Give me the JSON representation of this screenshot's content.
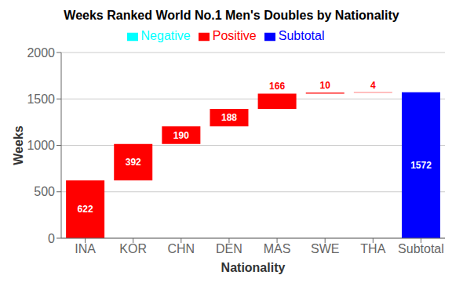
{
  "chart_data": {
    "type": "waterfall",
    "title": "Weeks Ranked World No.1 Men's Doubles by Nationality",
    "xlabel": "Nationality",
    "ylabel": "Weeks",
    "categories": [
      "INA",
      "KOR",
      "CHN",
      "DEN",
      "MAS",
      "SWE",
      "THA",
      "Subtotal"
    ],
    "series": [
      {
        "name": "Positive",
        "type": "increase",
        "color": "#FF0000",
        "values": [
          622,
          392,
          190,
          188,
          166,
          10,
          4,
          null
        ]
      },
      {
        "name": "Negative",
        "type": "decrease",
        "color": "#00FFFF",
        "values": [
          null,
          null,
          null,
          null,
          null,
          null,
          null,
          null
        ]
      },
      {
        "name": "Subtotal",
        "type": "total",
        "color": "#0000FF",
        "values": [
          null,
          null,
          null,
          null,
          null,
          null,
          null,
          1572
        ]
      }
    ],
    "ylim": [
      0,
      2000
    ],
    "yticks": [
      0,
      500,
      1000,
      1500,
      2000
    ],
    "grid": true,
    "legend": "top",
    "data_labels": true
  }
}
